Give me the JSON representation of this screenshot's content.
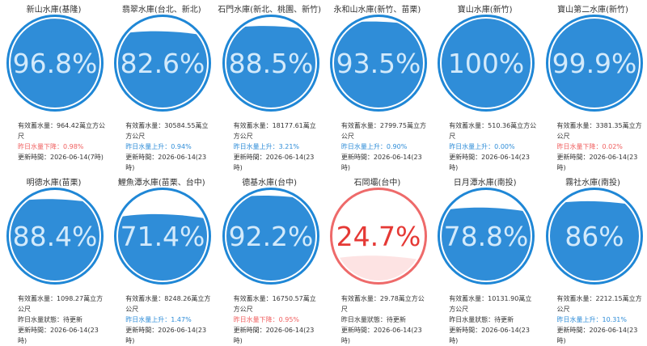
{
  "themes": {
    "blue": {
      "ring": "#1f87d6",
      "water": "#2f8dd8",
      "text": "#d3eafb"
    },
    "red": {
      "ring": "#ee6a6a",
      "water": "#fde3e3",
      "text": "#e53935"
    }
  },
  "cards": [
    {
      "name": "新山水庫(基隆)",
      "percent": {
        "value": 96.8,
        "label": "96.8%"
      },
      "theme": "blue",
      "storage": "有效蓄水量：964.42萬立方公尺",
      "status": "昨日水量下降：0.98%",
      "status_color": "#f06060",
      "updated": "更新時間：2026-06-14(7時)"
    },
    {
      "name": "翡翠水庫(台北、新北)",
      "percent": {
        "value": 82.6,
        "label": "82.6%"
      },
      "theme": "blue",
      "storage": "有效蓄水量：30584.55萬立方公尺",
      "status": "昨日水量上升：0.94%",
      "status_color": "#2f8dd8",
      "updated": "更新時間：2026-06-14(23時)"
    },
    {
      "name": "石門水庫(新北、桃園、新竹)",
      "percent": {
        "value": 88.5,
        "label": "88.5%"
      },
      "theme": "blue",
      "storage": "有效蓄水量：18177.61萬立方公尺",
      "status": "昨日水量上升：3.21%",
      "status_color": "#2f8dd8",
      "updated": "更新時間：2026-06-14(23時)"
    },
    {
      "name": "永和山水庫(新竹、苗栗)",
      "percent": {
        "value": 93.5,
        "label": "93.5%"
      },
      "theme": "blue",
      "storage": "有效蓄水量：2799.75萬立方公尺",
      "status": "昨日水量上升：0.90%",
      "status_color": "#2f8dd8",
      "updated": "更新時間：2026-06-14(23時)"
    },
    {
      "name": "寶山水庫(新竹)",
      "percent": {
        "value": 100,
        "label": "100%"
      },
      "theme": "blue",
      "storage": "有效蓄水量：510.36萬立方公尺",
      "status": "昨日水量上升：0.00%",
      "status_color": "#2f8dd8",
      "updated": "更新時間：2026-06-14(23時)"
    },
    {
      "name": "寶山第二水庫(新竹)",
      "percent": {
        "value": 99.9,
        "label": "99.9%"
      },
      "theme": "blue",
      "storage": "有效蓄水量：3381.35萬立方公尺",
      "status": "昨日水量下降：0.02%",
      "status_color": "#f06060",
      "updated": "更新時間：2026-06-14(23時)"
    },
    {
      "name": "明德水庫(苗栗)",
      "percent": {
        "value": 88.4,
        "label": "88.4%"
      },
      "theme": "blue",
      "storage": "有效蓄水量：1098.27萬立方公尺",
      "status": "昨日水量狀態：待更新",
      "status_color": "#333333",
      "updated": "更新時間：2026-06-14(23時)"
    },
    {
      "name": "鯉魚潭水庫(苗栗、台中)",
      "percent": {
        "value": 71.4,
        "label": "71.4%"
      },
      "theme": "blue",
      "storage": "有效蓄水量：8248.26萬立方公尺",
      "status": "昨日水量上升：1.47%",
      "status_color": "#2f8dd8",
      "updated": "更新時間：2026-06-14(23時)"
    },
    {
      "name": "德基水庫(台中)",
      "percent": {
        "value": 92.2,
        "label": "92.2%"
      },
      "theme": "blue",
      "storage": "有效蓄水量：16750.57萬立方公尺",
      "status": "昨日水量下降：0.95%",
      "status_color": "#f06060",
      "updated": "更新時間：2026-06-14(23時)"
    },
    {
      "name": "石岡壩(台中)",
      "percent": {
        "value": 24.7,
        "label": "24.7%"
      },
      "theme": "red",
      "storage": "有效蓄水量：29.78萬立方公尺",
      "status": "昨日水量狀態：待更新",
      "status_color": "#333333",
      "updated": "更新時間：2026-06-14(23時)"
    },
    {
      "name": "日月潭水庫(南投)",
      "percent": {
        "value": 78.8,
        "label": "78.8%"
      },
      "theme": "blue",
      "storage": "有效蓄水量：10131.90萬立方公尺",
      "status": "昨日水量狀態：待更新",
      "status_color": "#333333",
      "updated": "更新時間：2026-06-14(23時)"
    },
    {
      "name": "霧社水庫(南投)",
      "percent": {
        "value": 86,
        "label": "86%"
      },
      "theme": "blue",
      "storage": "有效蓄水量：2212.15萬立方公尺",
      "status": "昨日水量上升：10.31%",
      "status_color": "#2f8dd8",
      "updated": "更新時間：2026-06-14(23時)"
    }
  ]
}
